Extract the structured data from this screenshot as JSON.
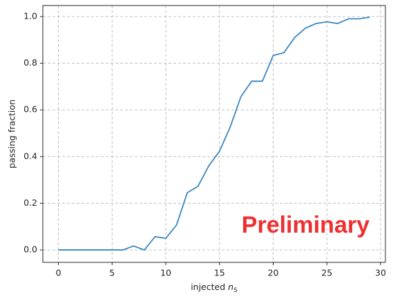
{
  "chart_data": {
    "type": "line",
    "x_label": "injected",
    "x_label_symbol": "n",
    "x_label_subscript": "S",
    "y_label": "passing fraction",
    "annotation": "Preliminary",
    "annotation_color": "#f03030",
    "x": [
      0,
      1,
      2,
      3,
      4,
      5,
      6,
      7,
      8,
      9,
      10,
      11,
      12,
      13,
      14,
      15,
      16,
      17,
      18,
      19,
      20,
      21,
      22,
      23,
      24,
      25,
      26,
      27,
      28,
      29
    ],
    "series": [
      {
        "color": "#3a86c0",
        "values": [
          0,
          0,
          0,
          0,
          0,
          0,
          0,
          0.017,
          0.0,
          0.057,
          0.05,
          0.107,
          0.245,
          0.273,
          0.36,
          0.423,
          0.527,
          0.657,
          0.723,
          0.723,
          0.833,
          0.845,
          0.91,
          0.95,
          0.97,
          0.977,
          0.97,
          0.99,
          0.99,
          0.997
        ]
      }
    ],
    "xlim": [
      -1.45,
      30.45
    ],
    "xticks": [
      0,
      5,
      10,
      15,
      20,
      25,
      30
    ],
    "ylim": [
      -0.053,
      1.047
    ],
    "yticks": [
      {
        "value": 0,
        "label": "0.0"
      },
      0.2,
      0.4,
      0.6,
      0.8,
      {
        "value": 1,
        "label": "1.0"
      }
    ],
    "grid": true
  }
}
